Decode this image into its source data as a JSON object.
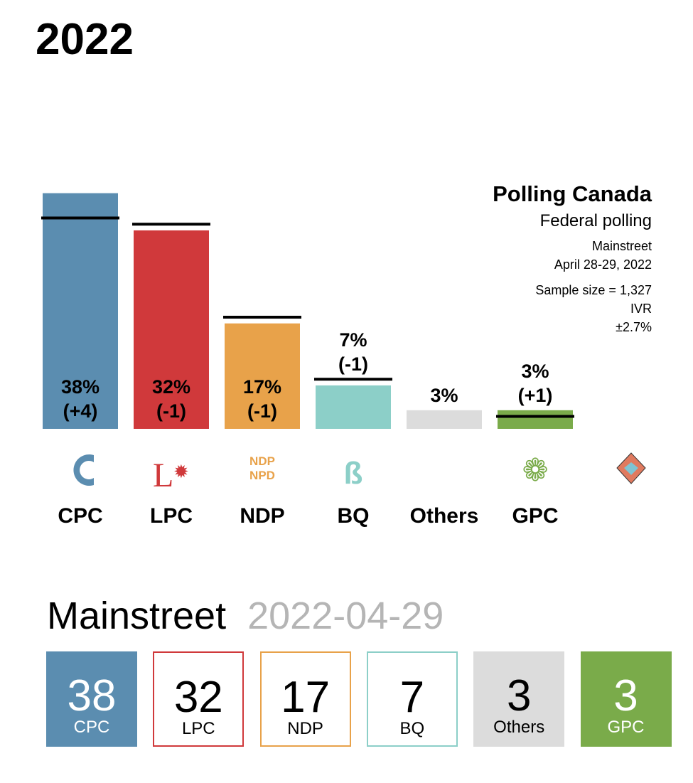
{
  "title": "2022",
  "info": {
    "brand": "Polling Canada",
    "subtitle": "Federal polling",
    "pollster": "Mainstreet",
    "dates": "April 28-29, 2022",
    "sample": "Sample size = 1,327",
    "method": "IVR",
    "margin": "±2.7%"
  },
  "chart_data": {
    "type": "bar",
    "categories": [
      "CPC",
      "LPC",
      "NDP",
      "BQ",
      "Others",
      "GPC"
    ],
    "values": [
      38,
      32,
      17,
      7,
      3,
      3
    ],
    "previous": [
      34,
      33,
      18,
      8,
      null,
      2
    ],
    "value_labels": [
      "38%",
      "32%",
      "17%",
      "7%",
      "3%",
      "3%"
    ],
    "change_labels": [
      "(+4)",
      "(-1)",
      "(-1)",
      "(-1)",
      "",
      "(+1)"
    ],
    "colors": [
      "#5b8db0",
      "#d0393b",
      "#e8a24a",
      "#8ccfc8",
      "#dcdcdc",
      "#7aab4a"
    ],
    "ylim": [
      0,
      40
    ]
  },
  "summary": {
    "pollster": "Mainstreet",
    "date": "2022-04-29",
    "boxes": [
      {
        "v": "38",
        "l": "CPC"
      },
      {
        "v": "32",
        "l": "LPC"
      },
      {
        "v": "17",
        "l": "NDP"
      },
      {
        "v": "7",
        "l": "BQ"
      },
      {
        "v": "3",
        "l": "Others"
      },
      {
        "v": "3",
        "l": "GPC"
      }
    ]
  }
}
